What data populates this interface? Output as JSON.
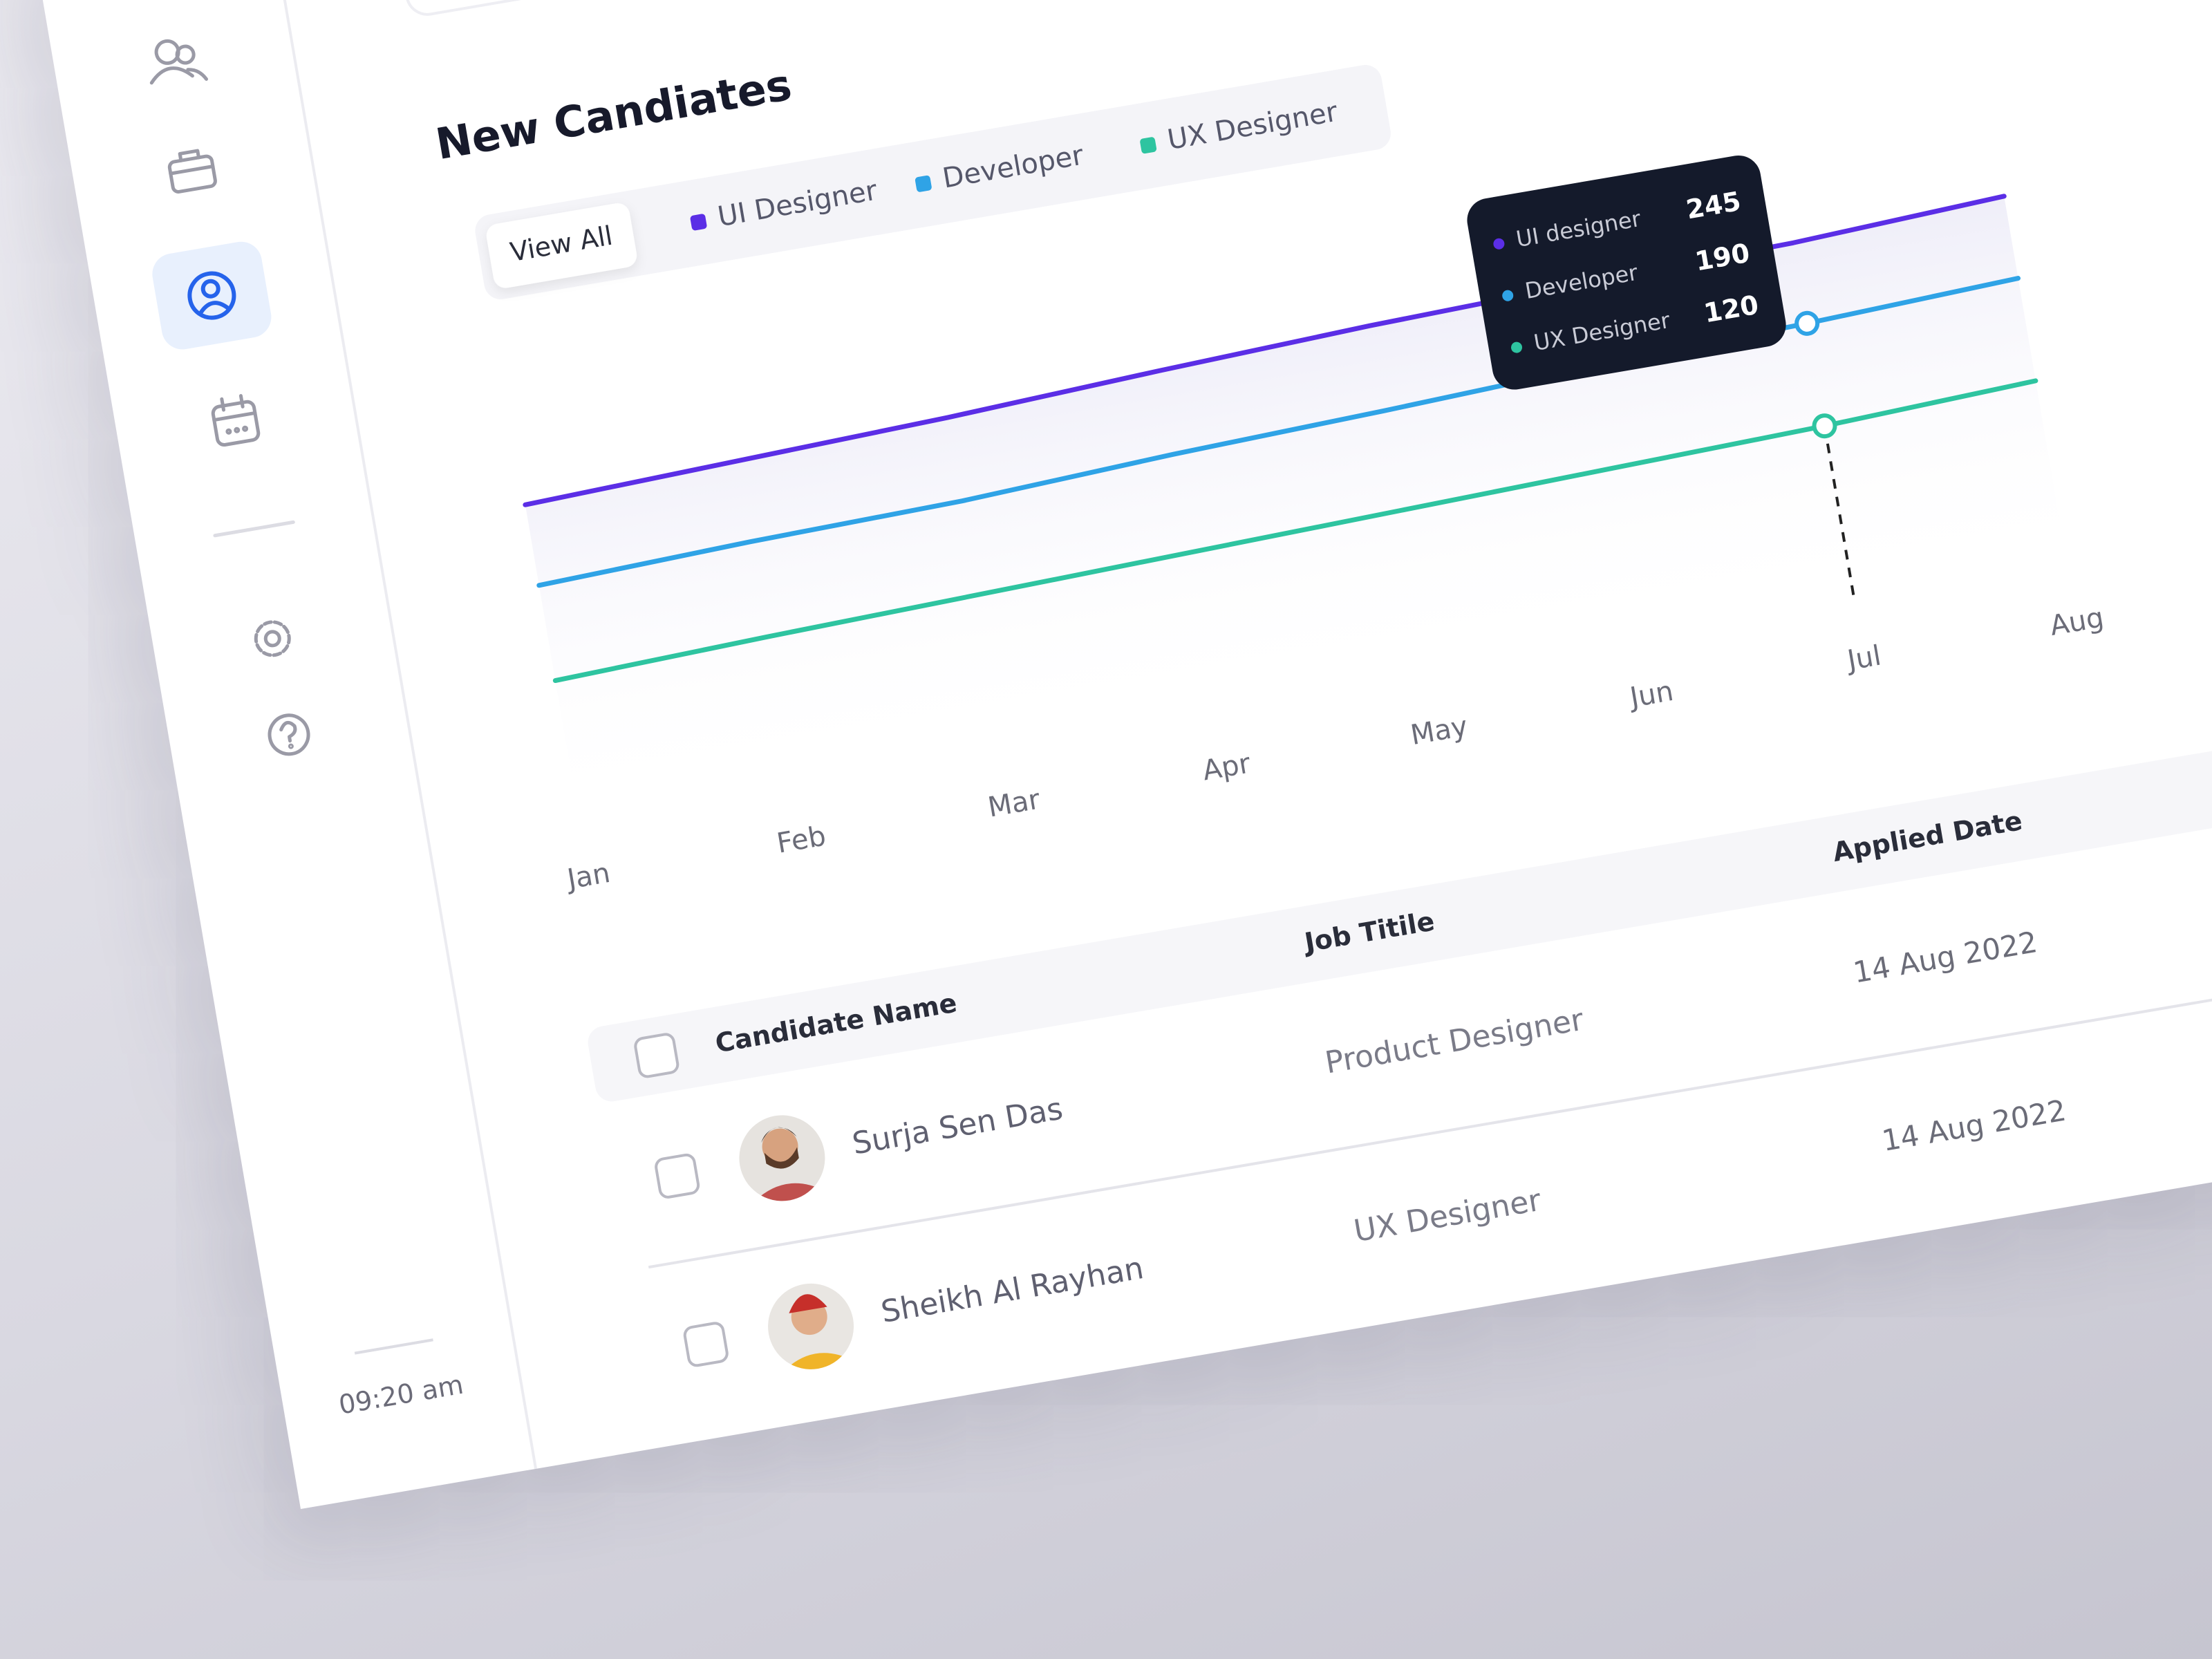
{
  "sidebar": {
    "time": "09:20 am"
  },
  "chart_data": {
    "type": "line",
    "title": "New Candiates",
    "filter": "View All",
    "categories": [
      "Jan",
      "Feb",
      "Mar",
      "Apr",
      "May",
      "Jun",
      "Jul",
      "Aug"
    ],
    "series": [
      {
        "name": "UI Designer",
        "color": "#5b2ee6",
        "values": [
          215,
          220,
          225,
          232,
          238,
          242,
          245,
          252
        ]
      },
      {
        "name": "Developer",
        "color": "#2fa3e6",
        "values": [
          160,
          165,
          168,
          175,
          180,
          186,
          190,
          196
        ]
      },
      {
        "name": "UX Designer",
        "color": "#2ec4a0",
        "values": [
          95,
          100,
          104,
          108,
          112,
          116,
          120,
          126
        ]
      }
    ],
    "ylim": [
      0,
      300
    ],
    "tooltip": {
      "at": "Jul",
      "labels": [
        "UI designer",
        "Developer",
        "UX Designer"
      ]
    }
  },
  "table": {
    "columns": [
      "Candidate Name",
      "Job Titile",
      "Applied Date"
    ],
    "rows": [
      [
        "Surja Sen Das",
        "Product Designer",
        "14 Aug 2022"
      ],
      [
        "Sheikh Al Rayhan",
        "UX Designer",
        "14 Aug 2022"
      ]
    ]
  }
}
